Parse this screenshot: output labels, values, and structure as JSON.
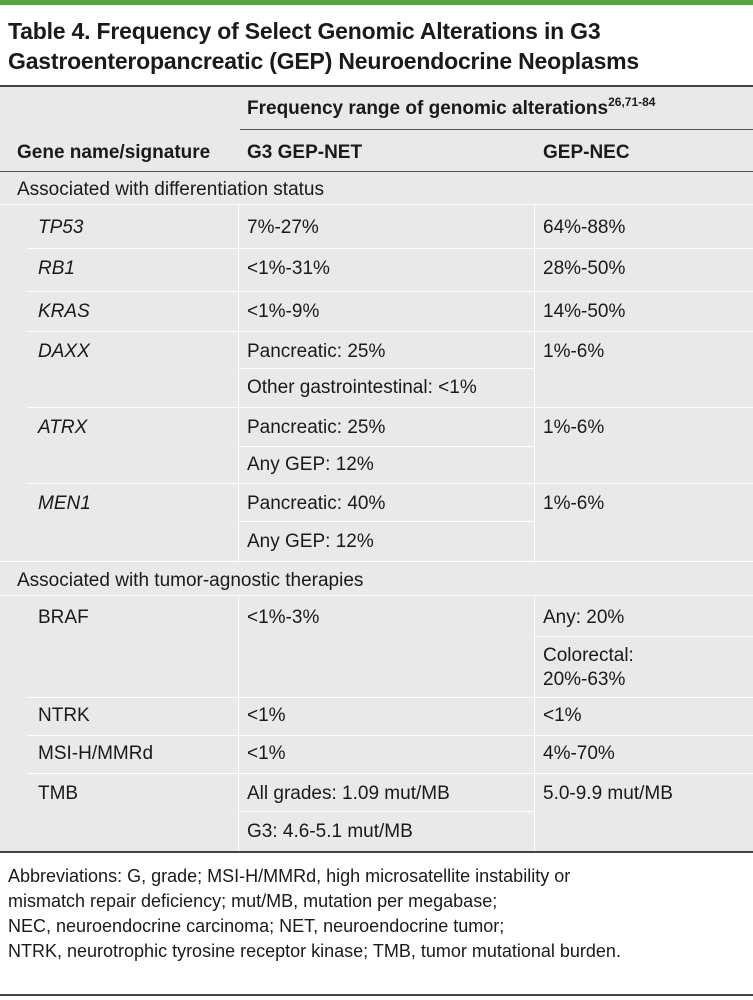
{
  "title": {
    "line1": "Table 4. Frequency of Select Genomic Alterations in G3",
    "line2": "Gastroenteropancreatic (GEP) Neuroendocrine Neoplasms"
  },
  "header": {
    "span_label": "Frequency range of genomic alterations",
    "span_refs": "26,71-84",
    "col1": "Gene name/signature",
    "col2": "G3 GEP-NET",
    "col3": "GEP-NEC"
  },
  "sections": {
    "differentiation": "Associated with differentiation status",
    "tumor_agnostic": "Associated with tumor-agnostic therapies"
  },
  "rows": {
    "tp53": {
      "gene": "TP53",
      "net": "7%-27%",
      "nec": "64%-88%"
    },
    "rb1": {
      "gene": "RB1",
      "net": "<1%-31%",
      "nec": "28%-50%"
    },
    "kras": {
      "gene": "KRAS",
      "net": "<1%-9%",
      "nec": "14%-50%"
    },
    "daxx": {
      "gene": "DAXX",
      "net1": "Pancreatic: 25%",
      "net2": "Other gastrointestinal: <1%",
      "nec": "1%-6%"
    },
    "atrx": {
      "gene": "ATRX",
      "net1": "Pancreatic: 25%",
      "net2": "Any GEP: 12%",
      "nec": "1%-6%"
    },
    "men1": {
      "gene": "MEN1",
      "net1": "Pancreatic: 40%",
      "net2": "Any GEP: 12%",
      "nec": "1%-6%"
    },
    "braf": {
      "gene": "BRAF",
      "net": "<1%-3%",
      "nec1": "Any: 20%",
      "nec2a": "Colorectal:",
      "nec2b": "20%-63%"
    },
    "ntrk": {
      "gene": "NTRK",
      "net": "<1%",
      "nec": "<1%"
    },
    "msi": {
      "gene": "MSI-H/MMRd",
      "net": "<1%",
      "nec": "4%-70%"
    },
    "tmb": {
      "gene": "TMB",
      "net1": "All grades: 1.09 mut/MB",
      "net2": "G3: 4.6-5.1 mut/MB",
      "nec": "5.0-9.9 mut/MB"
    }
  },
  "abbreviations": [
    "Abbreviations: G, grade; MSI-H/MMRd, high microsatellite instability or",
    "mismatch repair deficiency; mut/MB, mutation per megabase;",
    "NEC, neuroendocrine carcinoma; NET, neuroendocrine tumor;",
    "NTRK, neurotrophic tyrosine receptor kinase; TMB, tumor mutational burden."
  ],
  "colors": {
    "accent": "#5aa045",
    "table_bg": "#e9e9e9"
  }
}
